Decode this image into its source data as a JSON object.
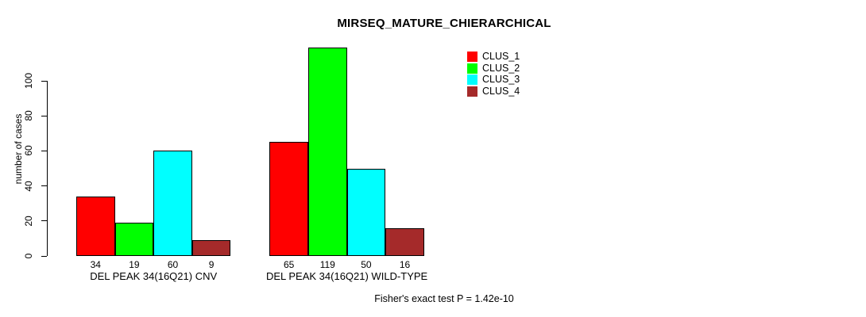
{
  "title": "MIRSEQ_MATURE_CHIERARCHICAL",
  "chart_data": {
    "type": "bar",
    "title": "MIRSEQ_MATURE_CHIERARCHICAL",
    "xlabel": "",
    "ylabel": "number of cases",
    "ylim": [
      0,
      120
    ],
    "yticks": [
      0,
      20,
      40,
      60,
      80,
      100
    ],
    "grid": false,
    "legend_position": "top-right",
    "categories": [
      "DEL PEAK 34(16Q21) CNV",
      "DEL PEAK 34(16Q21) WILD-TYPE"
    ],
    "series": [
      {
        "name": "CLUS_1",
        "color": "#FF0000",
        "values": [
          34,
          65
        ]
      },
      {
        "name": "CLUS_2",
        "color": "#00FF00",
        "values": [
          19,
          119
        ]
      },
      {
        "name": "CLUS_3",
        "color": "#00FFFF",
        "values": [
          60,
          50
        ]
      },
      {
        "name": "CLUS_4",
        "color": "#A52A2A",
        "values": [
          9,
          16
        ]
      }
    ],
    "bar_value_labels_shown": true,
    "annotation": "Fisher's exact test P = 1.42e-10"
  },
  "colors": {
    "axis": "#000000",
    "text": "#000000",
    "background": "#FFFFFF"
  }
}
